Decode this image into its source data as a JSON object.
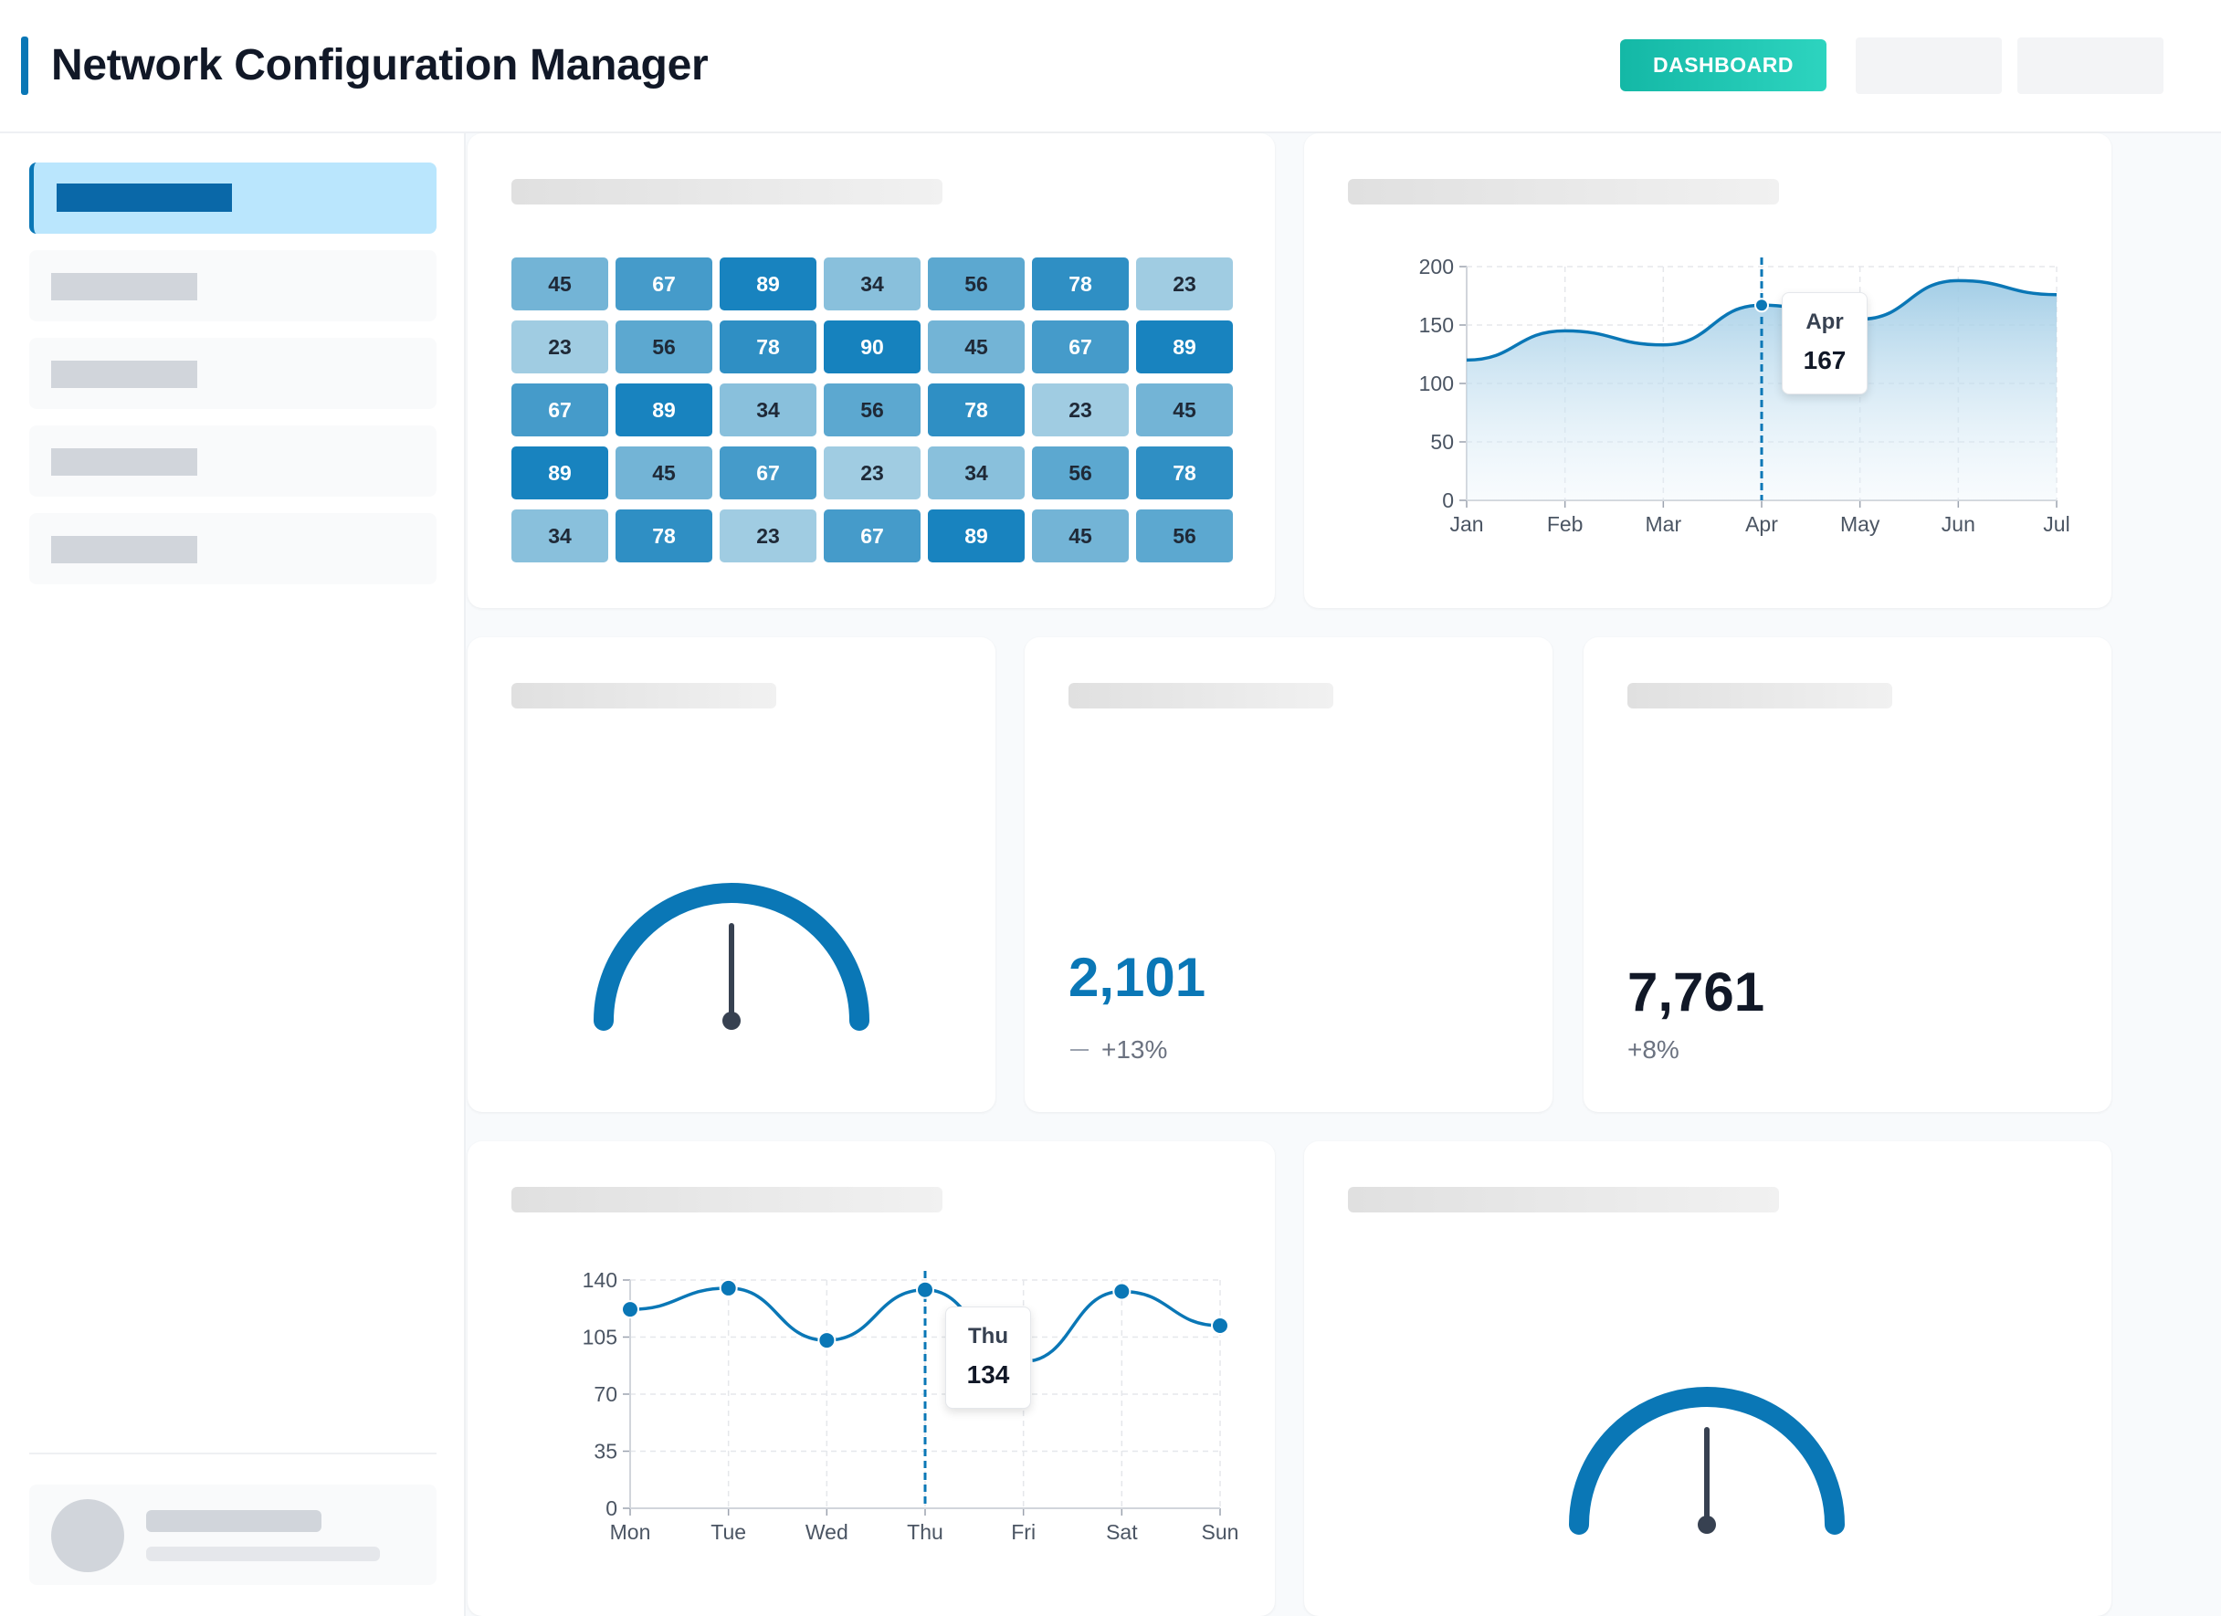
{
  "header": {
    "title": "Network Configuration Manager",
    "dashboard_button": "DASHBOARD"
  },
  "heatmap": {
    "rows": [
      [
        45,
        67,
        89,
        34,
        56,
        78,
        23
      ],
      [
        23,
        56,
        78,
        90,
        45,
        67,
        89
      ],
      [
        67,
        89,
        34,
        56,
        78,
        23,
        45
      ],
      [
        89,
        45,
        67,
        23,
        34,
        56,
        78
      ],
      [
        34,
        78,
        23,
        67,
        89,
        45,
        56
      ]
    ]
  },
  "chart_data": [
    {
      "type": "area",
      "x": [
        "Jan",
        "Feb",
        "Mar",
        "Apr",
        "May",
        "Jun",
        "Jul"
      ],
      "values": [
        120,
        145,
        133,
        167,
        155,
        188,
        176
      ],
      "ylim": [
        0,
        200
      ],
      "yticks": [
        0,
        50,
        100,
        150,
        200
      ],
      "grid": true,
      "tooltip": {
        "label": "Apr",
        "value": "167"
      }
    },
    {
      "type": "line",
      "x": [
        "Mon",
        "Tue",
        "Wed",
        "Thu",
        "Fri",
        "Sat",
        "Sun"
      ],
      "values": [
        122,
        135,
        103,
        134,
        90,
        133,
        112
      ],
      "ylim": [
        0,
        140
      ],
      "yticks": [
        0,
        35,
        70,
        105,
        140
      ],
      "grid": true,
      "tooltip": {
        "label": "Thu",
        "value": "134"
      }
    }
  ],
  "metrics": [
    {
      "value": "2,101",
      "change": "+13%",
      "trend_icon": "minus-icon",
      "color": "#0a77b6"
    },
    {
      "value": "7,761",
      "change": "+8%",
      "color": "#111827"
    }
  ],
  "gauges": [
    {
      "level": 0.5,
      "color": "#0a77b6"
    },
    {
      "level": 0.5,
      "color": "#0a77b6"
    }
  ],
  "colors": {
    "accent": "#0a77b6",
    "button": "#14b8a6",
    "active_nav": "#bae6fd"
  }
}
